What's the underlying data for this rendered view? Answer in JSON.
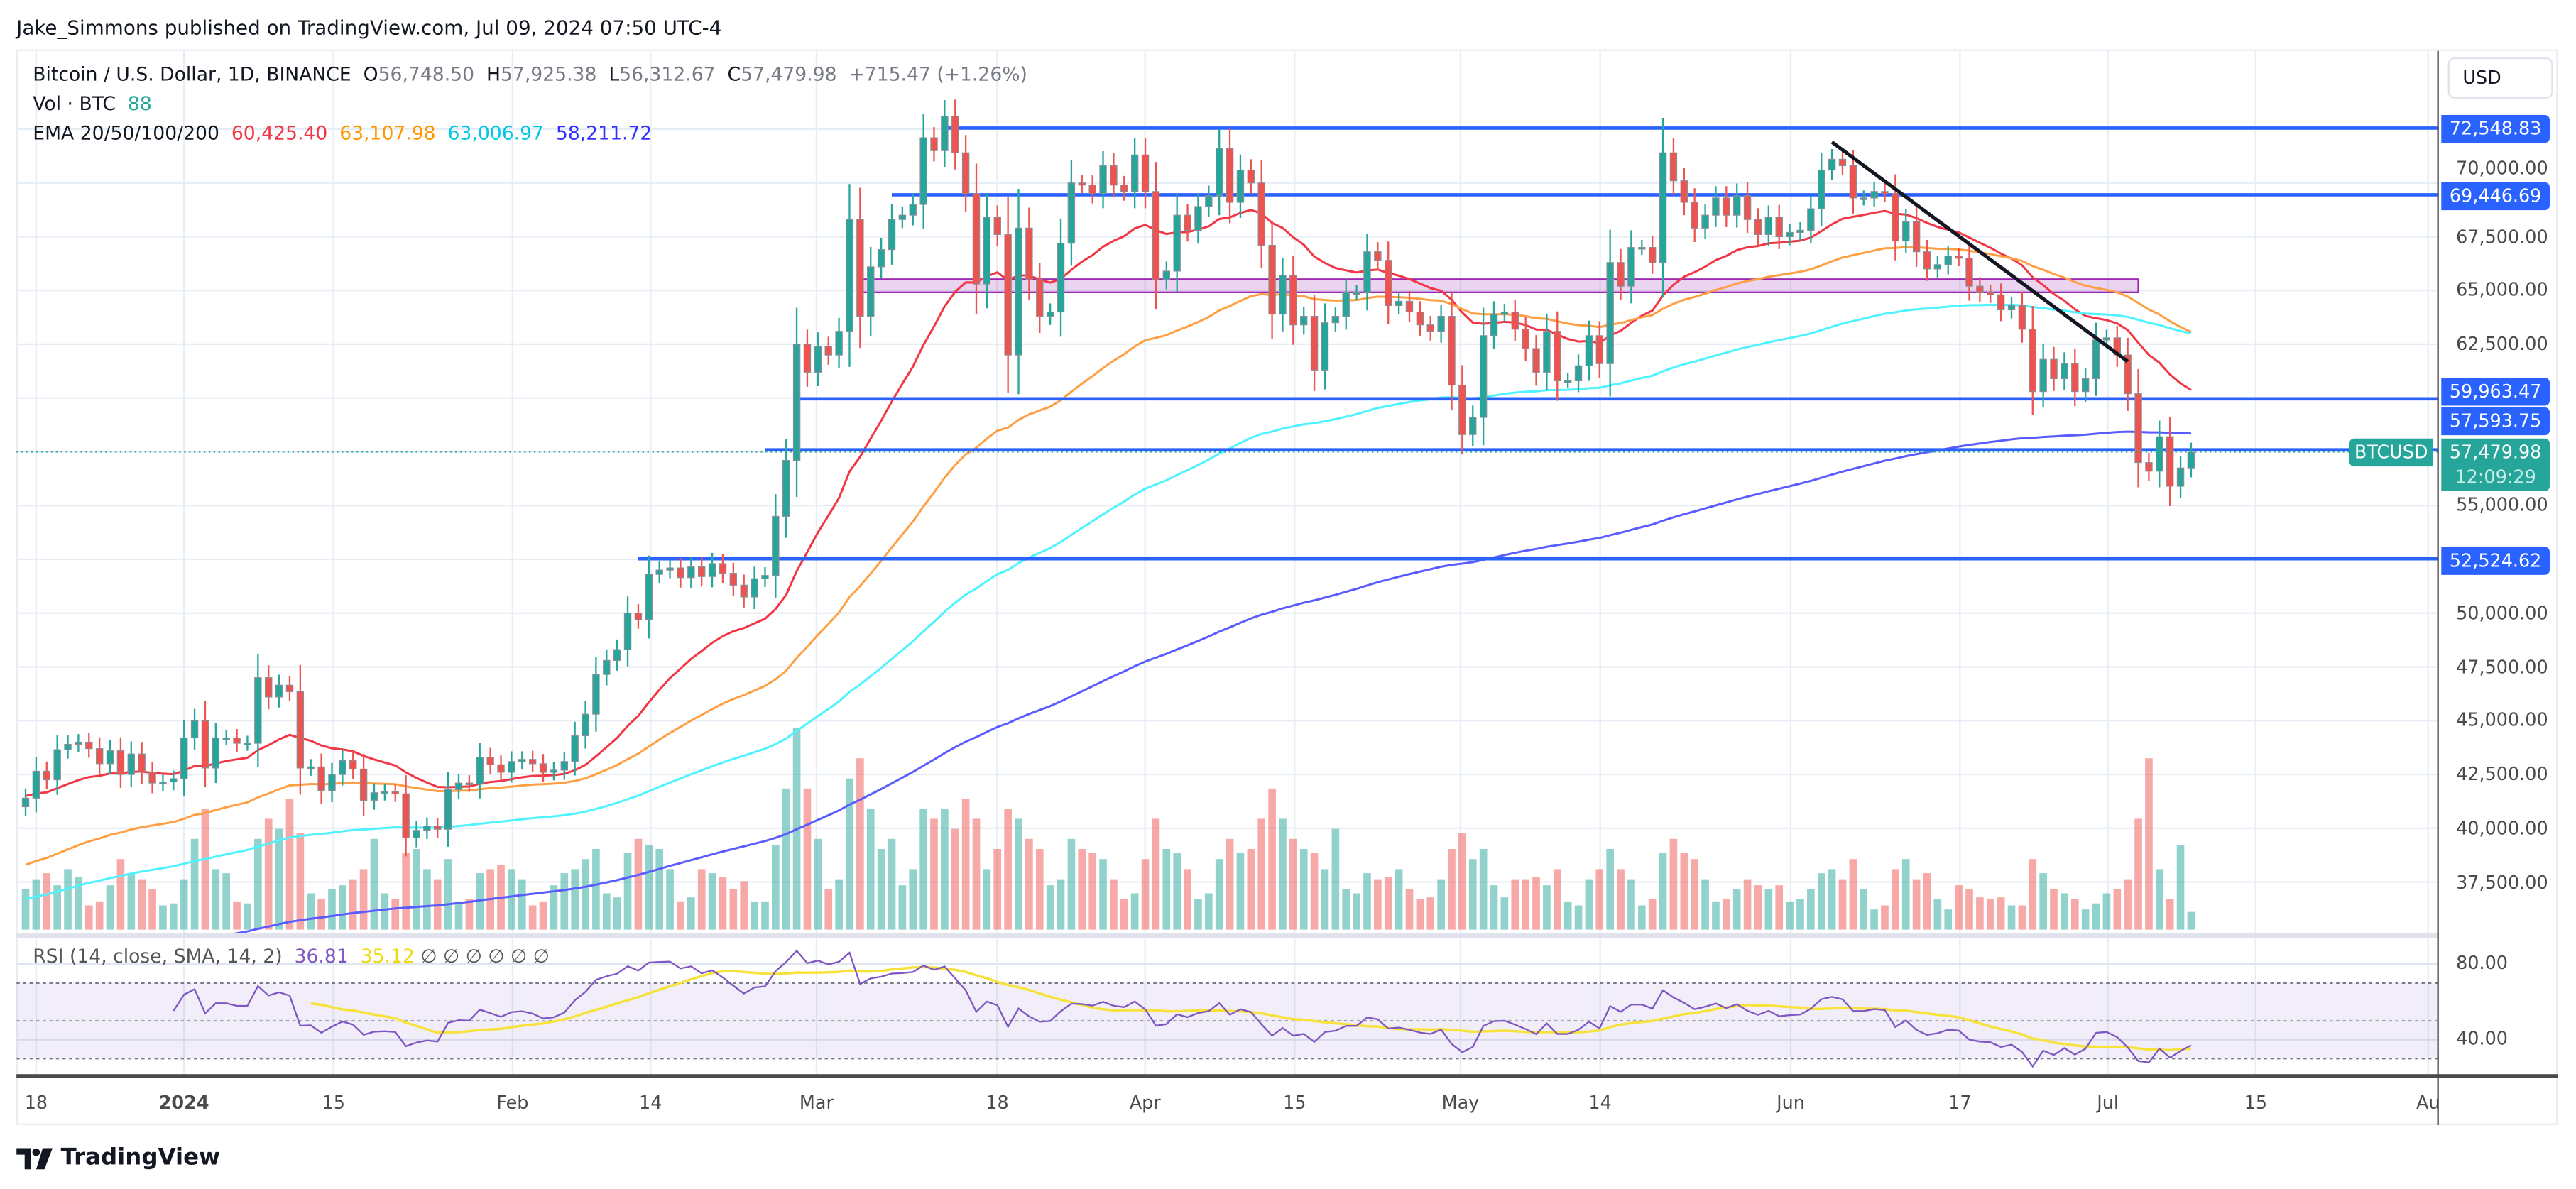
{
  "publisher": "Jake_Simmons published on TradingView.com, Jul 09, 2024 07:50 UTC-4",
  "legend": {
    "symbol": "Bitcoin / U.S. Dollar, 1D, BINANCE",
    "o_label": "O",
    "o": "56,748.50",
    "h_label": "H",
    "h": "57,925.38",
    "l_label": "L",
    "l": "56,312.67",
    "c_label": "C",
    "c": "57,479.98",
    "change": "+715.47 (+1.26%)",
    "vol_label": "Vol · BTC",
    "vol": "88",
    "ema_label": "EMA 20/50/100/200",
    "ema20": "60,425.40",
    "ema50": "63,107.98",
    "ema100": "63,006.97",
    "ema200": "58,211.72"
  },
  "colors": {
    "up": "#26a69a",
    "down": "#ef5350",
    "ema20": "#f23645",
    "ema50": "#ff9f43",
    "ema100": "#4ff3ff",
    "ema200": "#5b5cff",
    "level_line": "#2962ff",
    "zone": "#9c27b0",
    "rsi": "#7e57c2",
    "rsi_sma": "#f7e23b"
  },
  "price_axis": {
    "currency_button": "USD",
    "ticks": [
      "37,500.00",
      "40,000.00",
      "42,500.00",
      "45,000.00",
      "47,500.00",
      "50,000.00",
      "55,000.00",
      "62,500.00",
      "65,000.00",
      "67,500.00",
      "70,000.00"
    ],
    "levels": [
      "72,548.83",
      "69,446.69",
      "59,963.47",
      "57,593.75",
      "52,524.62"
    ],
    "last_price": "57,479.98",
    "countdown": "12:09:29",
    "symbol_tag": "BTCUSD"
  },
  "time_axis": [
    "18",
    "2024",
    "15",
    "Feb",
    "14",
    "Mar",
    "18",
    "Apr",
    "15",
    "May",
    "14",
    "Jun",
    "17",
    "Jul",
    "15",
    "Au"
  ],
  "rsi": {
    "label": "RSI (14, close, SMA, 14, 2)",
    "value": "36.81",
    "sma": "35.12",
    "na": [
      "∅",
      "∅",
      "∅",
      "∅",
      "∅",
      "∅"
    ],
    "ticks": [
      "80.00",
      "40.00"
    ]
  },
  "footer": {
    "brand": "TradingView"
  },
  "chart_data": {
    "type": "candlestick",
    "first_date": "2023-12-17",
    "last_date": "2024-07-09",
    "interval": "1D",
    "ylim": [
      35200,
      75000
    ],
    "last_bar": {
      "open": 56748.5,
      "high": 57925.38,
      "low": 56312.67,
      "close": 57479.98
    },
    "close": [
      41400,
      42650,
      42250,
      43650,
      43900,
      44000,
      43700,
      43000,
      43600,
      42500,
      43450,
      42600,
      42100,
      42150,
      42300,
      44200,
      45000,
      42800,
      44200,
      44200,
      43950,
      43950,
      47000,
      46100,
      46650,
      46350,
      42800,
      42850,
      41750,
      42500,
      43150,
      42750,
      41300,
      41650,
      41700,
      41600,
      39550,
      39900,
      40100,
      39950,
      41800,
      42100,
      42050,
      43300,
      42950,
      42600,
      43100,
      43200,
      43000,
      42600,
      42700,
      43100,
      44300,
      45300,
      47150,
      47800,
      48300,
      50000,
      49700,
      51800,
      52000,
      52100,
      51650,
      52150,
      51700,
      52300,
      51850,
      51300,
      50750,
      51600,
      51750,
      54500,
      57100,
      62500,
      61200,
      62400,
      62000,
      63100,
      68300,
      63800,
      66100,
      66900,
      68300,
      68500,
      69000,
      72100,
      71500,
      73100,
      71400,
      69500,
      65300,
      68400,
      67600,
      62000,
      67900,
      65500,
      63800,
      64000,
      67200,
      70000,
      69900,
      69500,
      70800,
      69900,
      69600,
      71300,
      69600,
      65500,
      65900,
      68500,
      67800,
      68900,
      69400,
      71600,
      69100,
      70600,
      70000,
      67100,
      63900,
      65700,
      63400,
      63800,
      61300,
      63500,
      63800,
      64900,
      64900,
      66800,
      66400,
      64300,
      64500,
      64000,
      63400,
      63100,
      63800,
      60600,
      58300,
      59100,
      62900,
      63900,
      64000,
      63200,
      62300,
      61200,
      63100,
      60800,
      60800,
      61500,
      62900,
      61600,
      66300,
      65200,
      67000,
      67000,
      66300,
      71400,
      70100,
      69100,
      67900,
      68500,
      69300,
      68500,
      69400,
      68300,
      67600,
      68400,
      67500,
      67700,
      67800,
      68800,
      70600,
      71100,
      70800,
      69300,
      69300,
      69600,
      69500,
      67300,
      68200,
      66800,
      66000,
      66200,
      66600,
      66500,
      65200,
      64900,
      64800,
      64100,
      64300,
      63200,
      60300,
      61800,
      60900,
      61600,
      60300,
      60900,
      62700,
      62800,
      62000,
      60200,
      57000,
      56600,
      58200,
      55900,
      56748.5,
      57479.98
    ],
    "volume": [
      200,
      250,
      280,
      220,
      300,
      260,
      120,
      140,
      220,
      350,
      280,
      250,
      200,
      120,
      130,
      250,
      450,
      600,
      300,
      280,
      140,
      130,
      450,
      550,
      500,
      650,
      480,
      180,
      150,
      200,
      220,
      250,
      300,
      450,
      180,
      150,
      380,
      400,
      300,
      250,
      350,
      140,
      150,
      280,
      300,
      320,
      300,
      250,
      120,
      140,
      220,
      280,
      300,
      350,
      400,
      180,
      160,
      380,
      450,
      420,
      400,
      300,
      140,
      160,
      300,
      280,
      260,
      200,
      240,
      140,
      140,
      420,
      700,
      1000,
      700,
      450,
      200,
      250,
      750,
      850,
      600,
      400,
      450,
      220,
      300,
      600,
      550,
      600,
      500,
      650,
      550,
      300,
      400,
      600,
      550,
      450,
      400,
      220,
      250,
      450,
      400,
      380,
      350,
      250,
      150,
      180,
      350,
      550,
      400,
      380,
      300,
      150,
      180,
      350,
      450,
      380,
      400,
      550,
      700,
      550,
      450,
      400,
      380,
      300,
      500,
      200,
      180,
      280,
      250,
      260,
      300,
      200,
      150,
      160,
      250,
      400,
      480,
      350,
      400,
      220,
      160,
      250,
      250,
      260,
      220,
      300,
      140,
      120,
      250,
      300,
      400,
      300,
      250,
      120,
      150,
      380,
      450,
      380,
      350,
      250,
      140,
      150,
      200,
      250,
      220,
      200,
      220,
      140,
      150,
      200,
      280,
      300,
      250,
      350,
      200,
      100,
      120,
      300,
      350,
      250,
      280,
      150,
      100,
      220,
      200,
      160,
      150,
      160,
      120,
      120,
      350,
      280,
      200,
      180,
      150,
      100,
      130,
      180,
      200,
      250,
      550,
      850,
      300,
      150,
      420,
      88
    ],
    "ema_start": {
      "ema20": 41500,
      "ema50": 38300,
      "ema100": 36700,
      "ema200": 33300
    },
    "horizontal_levels": [
      {
        "price": 72548.83,
        "from": "2024-03-13"
      },
      {
        "price": 69446.69,
        "from": "2024-03-08"
      },
      {
        "price": 59963.47,
        "from": "2024-02-28"
      },
      {
        "price": 57593.75,
        "from": "2024-02-25"
      },
      {
        "price": 52524.62,
        "from": "2024-02-13"
      }
    ],
    "zone": {
      "low": 64913,
      "high": 65524,
      "from": "2024-03-05",
      "to": "2024-07-04"
    },
    "trendline": {
      "from": [
        "2024-06-05",
        71900
      ],
      "to": [
        "2024-07-03",
        61700
      ]
    },
    "rsi_levels": [
      70,
      50,
      30
    ],
    "rsi_ylim": [
      15,
      100
    ]
  }
}
